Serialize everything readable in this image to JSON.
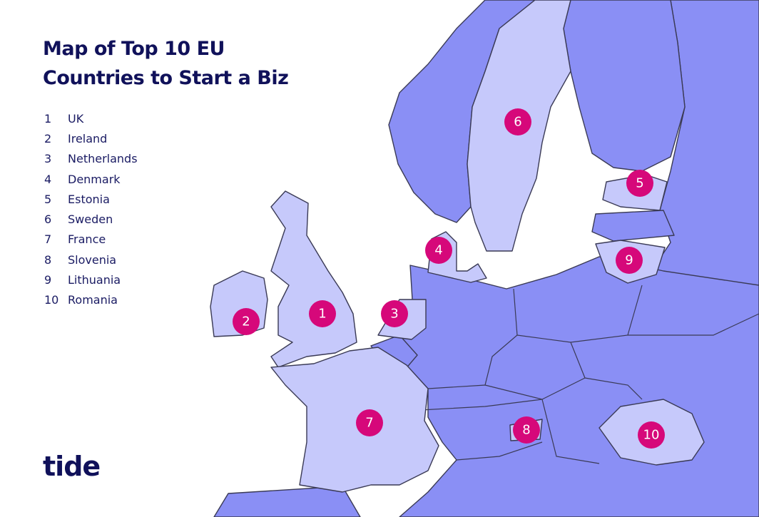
{
  "title": {
    "line1": "Map of Top 10 EU",
    "line2": "Countries to Start a Biz"
  },
  "legend": [
    {
      "rank": "1",
      "country": "UK"
    },
    {
      "rank": "2",
      "country": "Ireland"
    },
    {
      "rank": "3",
      "country": "Netherlands"
    },
    {
      "rank": "4",
      "country": "Denmark"
    },
    {
      "rank": "5",
      "country": "Estonia"
    },
    {
      "rank": "6",
      "country": "Sweden"
    },
    {
      "rank": "7",
      "country": "France"
    },
    {
      "rank": "8",
      "country": "Slovenia"
    },
    {
      "rank": "9",
      "country": "Lithuania"
    },
    {
      "rank": "10",
      "country": "Romania"
    }
  ],
  "logo": "tide",
  "colors": {
    "highlighted": "#c6c9fb",
    "other": "#8a8ff5",
    "marker": "#d6087a",
    "text": "#10115a"
  }
}
